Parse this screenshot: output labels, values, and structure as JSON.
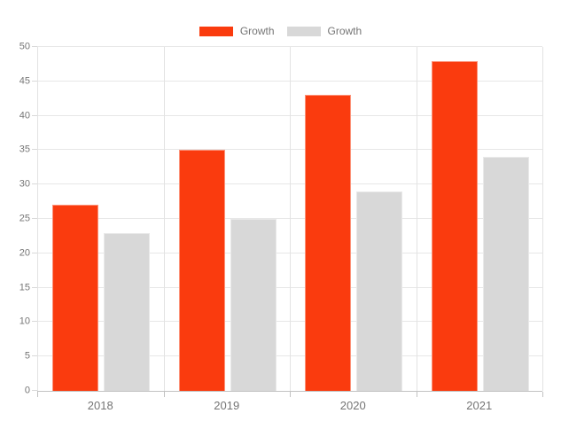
{
  "chart_data": {
    "type": "bar",
    "title": "",
    "categories": [
      "2018",
      "2019",
      "2020",
      "2021"
    ],
    "series": [
      {
        "name": "Growth",
        "color": "#fa3b0e",
        "values": [
          27,
          35,
          43,
          48
        ]
      },
      {
        "name": "Growth",
        "color": "#d8d8d8",
        "values": [
          23,
          25,
          29,
          34
        ]
      }
    ],
    "ylim": [
      0,
      50
    ],
    "ytick_step": 5,
    "grid": true,
    "legend_position": "top",
    "xlabel": "",
    "ylabel": ""
  },
  "styles": {
    "background": "#ffffff",
    "text_color": "#757575",
    "gridline_color": "#e7e7e7",
    "axis_line_color": "#c2c2c2"
  }
}
